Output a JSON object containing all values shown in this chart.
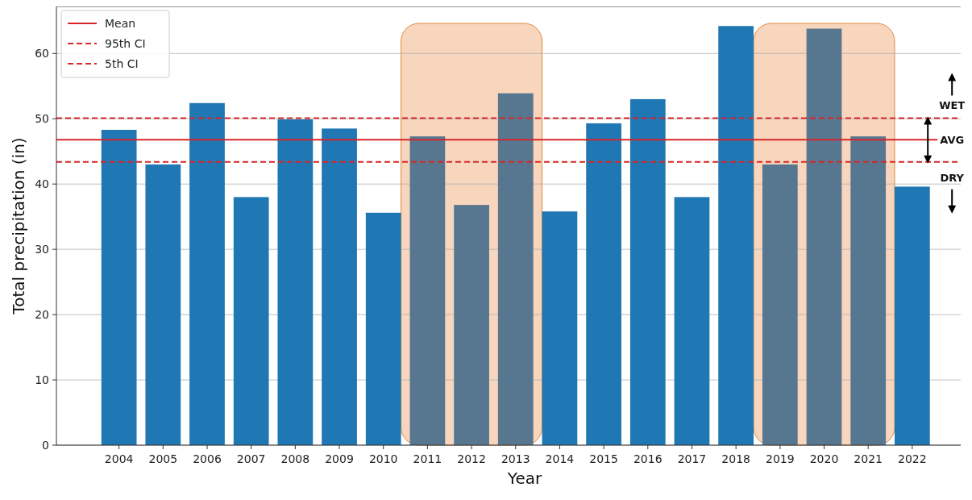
{
  "chart_data": {
    "type": "bar",
    "xlabel": "Year",
    "ylabel": "Total precipitation (in)",
    "categories": [
      "2004",
      "2005",
      "2006",
      "2007",
      "2008",
      "2009",
      "2010",
      "2011",
      "2012",
      "2013",
      "2014",
      "2015",
      "2016",
      "2017",
      "2018",
      "2019",
      "2020",
      "2021",
      "2022"
    ],
    "values": [
      48.3,
      43.0,
      52.4,
      38.0,
      49.9,
      48.5,
      35.6,
      47.3,
      36.8,
      53.9,
      35.8,
      49.3,
      53.0,
      38.0,
      64.2,
      43.0,
      63.8,
      47.3,
      39.6
    ],
    "colors": [
      "#1f77b4",
      "#1f77b4",
      "#1f77b4",
      "#1f77b4",
      "#1f77b4",
      "#1f77b4",
      "#1f77b4",
      "#577790",
      "#577790",
      "#577790",
      "#1f77b4",
      "#1f77b4",
      "#1f77b4",
      "#1f77b4",
      "#1f77b4",
      "#577790",
      "#577790",
      "#577790",
      "#1f77b4"
    ],
    "ylim": [
      0,
      67.2
    ],
    "yticks": [
      0,
      10,
      20,
      30,
      40,
      50,
      60
    ],
    "grid": "y",
    "legend": "top left",
    "ref_lines": [
      {
        "axis": "y",
        "value": 46.8,
        "label": "Mean",
        "color": "#d62728",
        "line_style": "solid"
      },
      {
        "axis": "y",
        "value": 50.1,
        "label": "95th CI",
        "color": "#d62728",
        "line_style": "dashed"
      },
      {
        "axis": "y",
        "value": 43.4,
        "label": "5th CI",
        "color": "#d62728",
        "line_style": "dashed"
      }
    ],
    "bands": [
      {
        "axis": "x",
        "from": "2011",
        "to": "2013",
        "color": "#f8d5bd"
      },
      {
        "axis": "x",
        "from": "2019",
        "to": "2021",
        "color": "#f8d5bd"
      }
    ],
    "annotations": [
      "WET",
      "AVG",
      "DRY"
    ]
  }
}
